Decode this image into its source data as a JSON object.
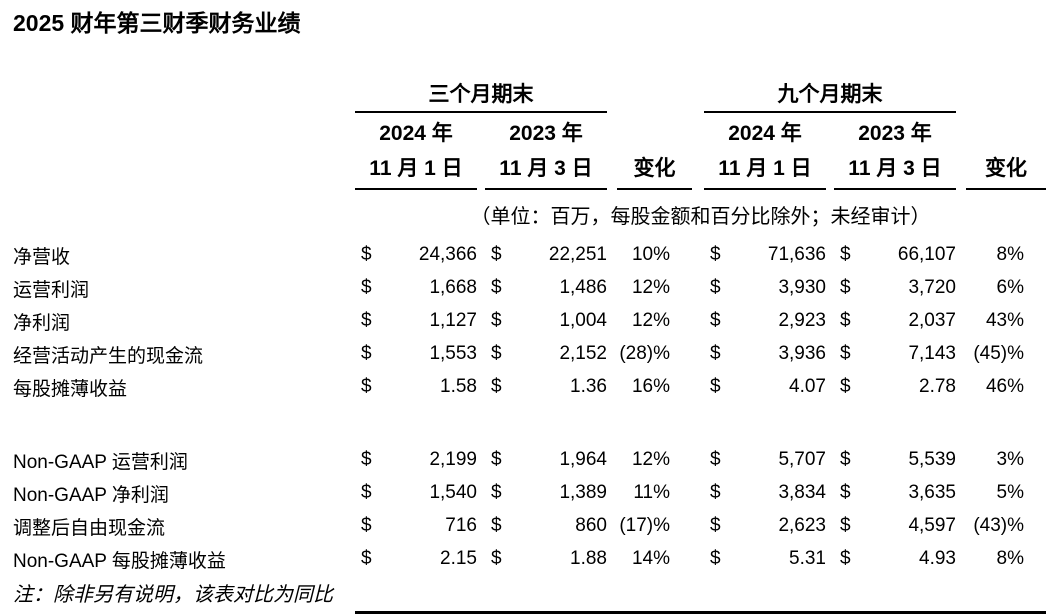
{
  "page": {
    "title": "2025 财年第三财季财务业绩",
    "footnote": "注：除非另有说明，该表对比为同比"
  },
  "table": {
    "groups": [
      {
        "label": "三个月期末"
      },
      {
        "label": "九个月期末"
      }
    ],
    "columns": {
      "col_2024": {
        "year": "2024 年",
        "date": "11 月 1 日"
      },
      "col_2023": {
        "year": "2023 年",
        "date": "11 月 3 日"
      },
      "change": "变化"
    },
    "units_note": "（单位：百万，每股金额和百分比除外；未经审计）",
    "currency": "$",
    "rows": [
      {
        "section": "gaap",
        "label": "净营收",
        "q3_2024": "24,366",
        "q3_2023": "22,251",
        "q3_change": "10%",
        "ytd_2024": "71,636",
        "ytd_2023": "66,107",
        "ytd_change": "8%"
      },
      {
        "section": "gaap",
        "label": "运营利润",
        "q3_2024": "1,668",
        "q3_2023": "1,486",
        "q3_change": "12%",
        "ytd_2024": "3,930",
        "ytd_2023": "3,720",
        "ytd_change": "6%"
      },
      {
        "section": "gaap",
        "label": "净利润",
        "q3_2024": "1,127",
        "q3_2023": "1,004",
        "q3_change": "12%",
        "ytd_2024": "2,923",
        "ytd_2023": "2,037",
        "ytd_change": "43%"
      },
      {
        "section": "gaap",
        "label": "经营活动产生的现金流",
        "q3_2024": "1,553",
        "q3_2023": "2,152",
        "q3_change": "(28)%",
        "ytd_2024": "3,936",
        "ytd_2023": "7,143",
        "ytd_change": "(45)%"
      },
      {
        "section": "gaap",
        "label": "每股摊薄收益",
        "q3_2024": "1.58",
        "q3_2023": "1.36",
        "q3_change": "16%",
        "ytd_2024": "4.07",
        "ytd_2023": "2.78",
        "ytd_change": "46%"
      },
      {
        "section": "non_gaap",
        "label": "Non-GAAP 运营利润",
        "q3_2024": "2,199",
        "q3_2023": "1,964",
        "q3_change": "12%",
        "ytd_2024": "5,707",
        "ytd_2023": "5,539",
        "ytd_change": "3%"
      },
      {
        "section": "non_gaap",
        "label": "Non-GAAP 净利润",
        "q3_2024": "1,540",
        "q3_2023": "1,389",
        "q3_change": "11%",
        "ytd_2024": "3,834",
        "ytd_2023": "3,635",
        "ytd_change": "5%"
      },
      {
        "section": "non_gaap",
        "label": "调整后自由现金流",
        "q3_2024": "716",
        "q3_2023": "860",
        "q3_change": "(17)%",
        "ytd_2024": "2,623",
        "ytd_2023": "4,597",
        "ytd_change": "(43)%"
      },
      {
        "section": "non_gaap",
        "label": "Non-GAAP 每股摊薄收益",
        "q3_2024": "2.15",
        "q3_2023": "1.88",
        "q3_change": "14%",
        "ytd_2024": "5.31",
        "ytd_2023": "4.93",
        "ytd_change": "8%"
      }
    ]
  }
}
